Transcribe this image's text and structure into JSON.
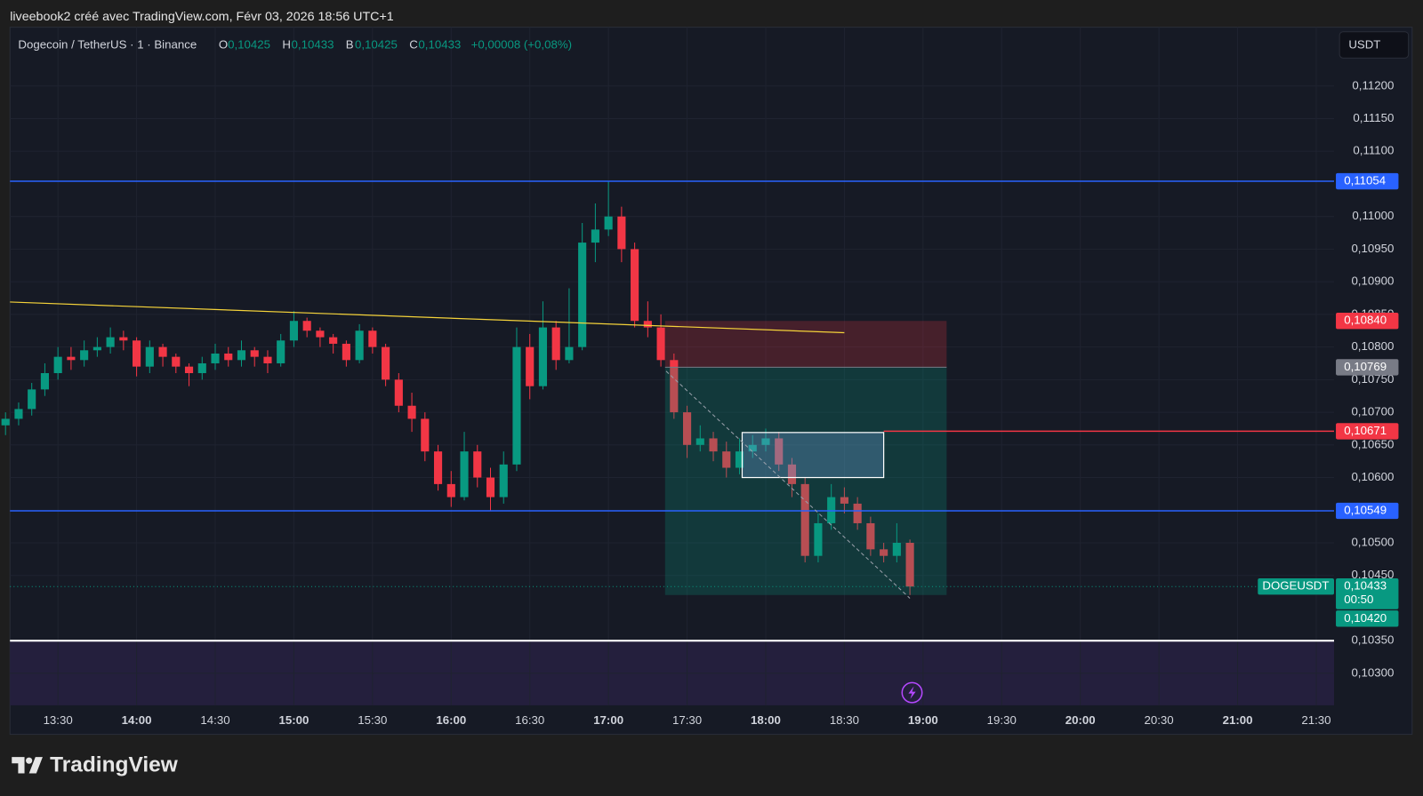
{
  "header": "liveebook2 créé avec TradingView.com, Févr 03, 2026 18:56 UTC+1",
  "brand": "TradingView",
  "chart_data": {
    "type": "candlestick",
    "symbol": "Dogecoin / TetherUS · 1 · Binance",
    "ohlc_legend": [
      {
        "key": "O",
        "value": "0,10425"
      },
      {
        "key": "H",
        "value": "0,10433"
      },
      {
        "key": "B",
        "value": "0,10425"
      },
      {
        "key": "C",
        "value": "0,10433"
      }
    ],
    "change": "+0,00008 (+0,08%)",
    "currency": "USDT",
    "colors": {
      "up": "#089981",
      "down": "#f23645"
    },
    "x": [
      790,
      795,
      800,
      805,
      810,
      815,
      820,
      825,
      830,
      835,
      840,
      845,
      850,
      855,
      860,
      865,
      870,
      875,
      880,
      885,
      890,
      895,
      900,
      905,
      910,
      915,
      920,
      925,
      930,
      935,
      940,
      945,
      950,
      955,
      960,
      965,
      970,
      975,
      980,
      985,
      990,
      995,
      1000,
      1005,
      1010,
      1015,
      1020,
      1025,
      1030,
      1035,
      1040,
      1045,
      1050,
      1055,
      1060,
      1065,
      1070,
      1075,
      1080,
      1085,
      1090,
      1095,
      1100,
      1105,
      1110,
      1115,
      1120,
      1125,
      1130,
      1135
    ],
    "open": [
      0.1068,
      0.1069,
      0.10705,
      0.10735,
      0.1076,
      0.10785,
      0.1078,
      0.10795,
      0.108,
      0.10815,
      0.1081,
      0.1077,
      0.108,
      0.10785,
      0.1077,
      0.1076,
      0.10775,
      0.1079,
      0.1078,
      0.10795,
      0.10785,
      0.10775,
      0.1081,
      0.1084,
      0.10825,
      0.10815,
      0.10805,
      0.1078,
      0.10825,
      0.108,
      0.1075,
      0.1071,
      0.1069,
      0.1064,
      0.1059,
      0.1057,
      0.1064,
      0.106,
      0.1057,
      0.1062,
      0.108,
      0.1074,
      0.1083,
      0.1078,
      0.108,
      0.1096,
      0.1098,
      0.11,
      0.1095,
      0.1084,
      0.1083,
      0.1078,
      0.107,
      0.1065,
      0.1066,
      0.1064,
      0.10615,
      0.1064,
      0.1065,
      0.1066,
      0.1062,
      0.1059,
      0.1048,
      0.1053,
      0.1057,
      0.1056,
      0.1053,
      0.1049,
      0.1048,
      0.105
    ],
    "high": [
      0.107,
      0.10715,
      0.10745,
      0.10775,
      0.108,
      0.108,
      0.1081,
      0.10815,
      0.1083,
      0.10825,
      0.10815,
      0.1081,
      0.10805,
      0.1079,
      0.10775,
      0.10785,
      0.10805,
      0.108,
      0.1081,
      0.108,
      0.10795,
      0.1082,
      0.10855,
      0.10845,
      0.1083,
      0.1082,
      0.1081,
      0.10835,
      0.1083,
      0.10805,
      0.1076,
      0.1073,
      0.107,
      0.1065,
      0.1061,
      0.1067,
      0.1065,
      0.10615,
      0.1064,
      0.1083,
      0.1082,
      0.1087,
      0.1084,
      0.1089,
      0.1099,
      0.1102,
      0.11054,
      0.11015,
      0.1096,
      0.1087,
      0.1085,
      0.1079,
      0.1071,
      0.1068,
      0.1067,
      0.10655,
      0.1066,
      0.10665,
      0.10675,
      0.1067,
      0.1063,
      0.106,
      0.10545,
      0.1059,
      0.10585,
      0.1057,
      0.1054,
      0.105,
      0.1053,
      0.10505
    ],
    "low": [
      0.10665,
      0.1068,
      0.10695,
      0.10725,
      0.1075,
      0.10765,
      0.1077,
      0.10785,
      0.1079,
      0.10795,
      0.10755,
      0.1076,
      0.1077,
      0.1076,
      0.1074,
      0.1075,
      0.10765,
      0.1077,
      0.1077,
      0.1077,
      0.1076,
      0.1077,
      0.108,
      0.10815,
      0.108,
      0.1079,
      0.1077,
      0.10775,
      0.1079,
      0.1074,
      0.107,
      0.1067,
      0.10625,
      0.1058,
      0.10555,
      0.10565,
      0.10585,
      0.10549,
      0.1056,
      0.1061,
      0.1072,
      0.10735,
      0.10765,
      0.10775,
      0.10795,
      0.1093,
      0.1097,
      0.1093,
      0.1083,
      0.10815,
      0.1077,
      0.1069,
      0.1063,
      0.1064,
      0.10625,
      0.106,
      0.10605,
      0.1063,
      0.1064,
      0.1061,
      0.1057,
      0.1047,
      0.1047,
      0.1052,
      0.10545,
      0.1052,
      0.1048,
      0.1047,
      0.1047,
      0.1042
    ],
    "close": [
      0.1069,
      0.10705,
      0.10735,
      0.1076,
      0.10785,
      0.1078,
      0.10795,
      0.108,
      0.10815,
      0.1081,
      0.1077,
      0.108,
      0.10785,
      0.1077,
      0.1076,
      0.10775,
      0.1079,
      0.1078,
      0.10795,
      0.10785,
      0.10775,
      0.1081,
      0.1084,
      0.10825,
      0.10815,
      0.10805,
      0.1078,
      0.10825,
      0.108,
      0.1075,
      0.1071,
      0.1069,
      0.1064,
      0.1059,
      0.1057,
      0.1064,
      0.106,
      0.1057,
      0.1062,
      0.108,
      0.1074,
      0.1083,
      0.1078,
      0.108,
      0.1096,
      0.1098,
      0.11,
      0.1095,
      0.1084,
      0.1083,
      0.1078,
      0.107,
      0.1065,
      0.1066,
      0.1064,
      0.10615,
      0.1064,
      0.1065,
      0.1066,
      0.1062,
      0.1059,
      0.1048,
      0.1053,
      0.1057,
      0.1056,
      0.1053,
      0.1049,
      0.1048,
      0.105,
      0.10433
    ],
    "xlim": [
      791.7,
      1296.8
    ],
    "ylim": [
      0.10251,
      0.1129
    ],
    "xticks": [
      {
        "value": 810,
        "label": "13:30"
      },
      {
        "value": 840,
        "label": "14:00",
        "bold": true
      },
      {
        "value": 870,
        "label": "14:30"
      },
      {
        "value": 900,
        "label": "15:00",
        "bold": true
      },
      {
        "value": 930,
        "label": "15:30"
      },
      {
        "value": 960,
        "label": "16:00",
        "bold": true
      },
      {
        "value": 990,
        "label": "16:30"
      },
      {
        "value": 1020,
        "label": "17:00",
        "bold": true
      },
      {
        "value": 1050,
        "label": "17:30"
      },
      {
        "value": 1080,
        "label": "18:00",
        "bold": true
      },
      {
        "value": 1110,
        "label": "18:30"
      },
      {
        "value": 1140,
        "label": "19:00",
        "bold": true
      },
      {
        "value": 1170,
        "label": "19:30"
      },
      {
        "value": 1200,
        "label": "20:00",
        "bold": true
      },
      {
        "value": 1230,
        "label": "20:30"
      },
      {
        "value": 1260,
        "label": "21:00",
        "bold": true
      },
      {
        "value": 1290,
        "label": "21:30"
      }
    ],
    "yticks": [
      {
        "value": 0.112,
        "label": "0,11200"
      },
      {
        "value": 0.1115,
        "label": "0,11150"
      },
      {
        "value": 0.111,
        "label": "0,11100"
      },
      {
        "value": 0.11,
        "label": "0,11000"
      },
      {
        "value": 0.1095,
        "label": "0,10950"
      },
      {
        "value": 0.109,
        "label": "0,10900"
      },
      {
        "value": 0.1085,
        "label": "0,10850"
      },
      {
        "value": 0.108,
        "label": "0,10800"
      },
      {
        "value": 0.1075,
        "label": "0,10750"
      },
      {
        "value": 0.107,
        "label": "0,10700"
      },
      {
        "value": 0.1065,
        "label": "0,10650"
      },
      {
        "value": 0.106,
        "label": "0,10600"
      },
      {
        "value": 0.105,
        "label": "0,10500"
      },
      {
        "value": 0.1045,
        "label": "0,10450"
      },
      {
        "value": 0.1035,
        "label": "0,10350"
      },
      {
        "value": 0.103,
        "label": "0,10300"
      }
    ],
    "grid": true,
    "hlines": [
      {
        "value": 0.11054,
        "color": "#2962ff"
      },
      {
        "value": 0.10549,
        "color": "#2962ff"
      },
      {
        "value": 0.10671,
        "color": "#f23645",
        "from": 1125
      },
      {
        "value": 0.1035,
        "color": "#ffffff"
      }
    ],
    "price_labels": [
      {
        "value": 0.11054,
        "label": "0,11054",
        "color": "#2962ff"
      },
      {
        "value": 0.1084,
        "label": "0,10840",
        "color": "#f23645"
      },
      {
        "value": 0.10769,
        "label": "0,10769",
        "color": "#787b86"
      },
      {
        "value": 0.10671,
        "label": "0,10671",
        "color": "#f23645"
      },
      {
        "value": 0.10549,
        "label": "0,10549",
        "color": "#2962ff"
      }
    ],
    "last_price": {
      "symbol": "DOGEUSDT",
      "value": 0.10433,
      "label": "0,10433",
      "countdown": "00:50",
      "color": "#089981"
    },
    "target_label": {
      "value": 0.1042,
      "label": "0,10420",
      "color": "#089981"
    },
    "trendline": {
      "x": [
        791.7,
        1110
      ],
      "y": [
        0.10869,
        0.10822
      ],
      "color": "#f5d33a"
    },
    "position": {
      "x": [
        1041.6,
        1149
      ],
      "entry": 0.10769,
      "stop": 0.1084,
      "target": 0.1042
    },
    "rect": {
      "x": [
        1071,
        1125
      ],
      "y": [
        0.106,
        0.10669
      ]
    },
    "dashed": {
      "x": [
        1042,
        1135
      ],
      "y": [
        0.10763,
        0.10415
      ]
    },
    "zone": {
      "top": 0.1035
    }
  }
}
